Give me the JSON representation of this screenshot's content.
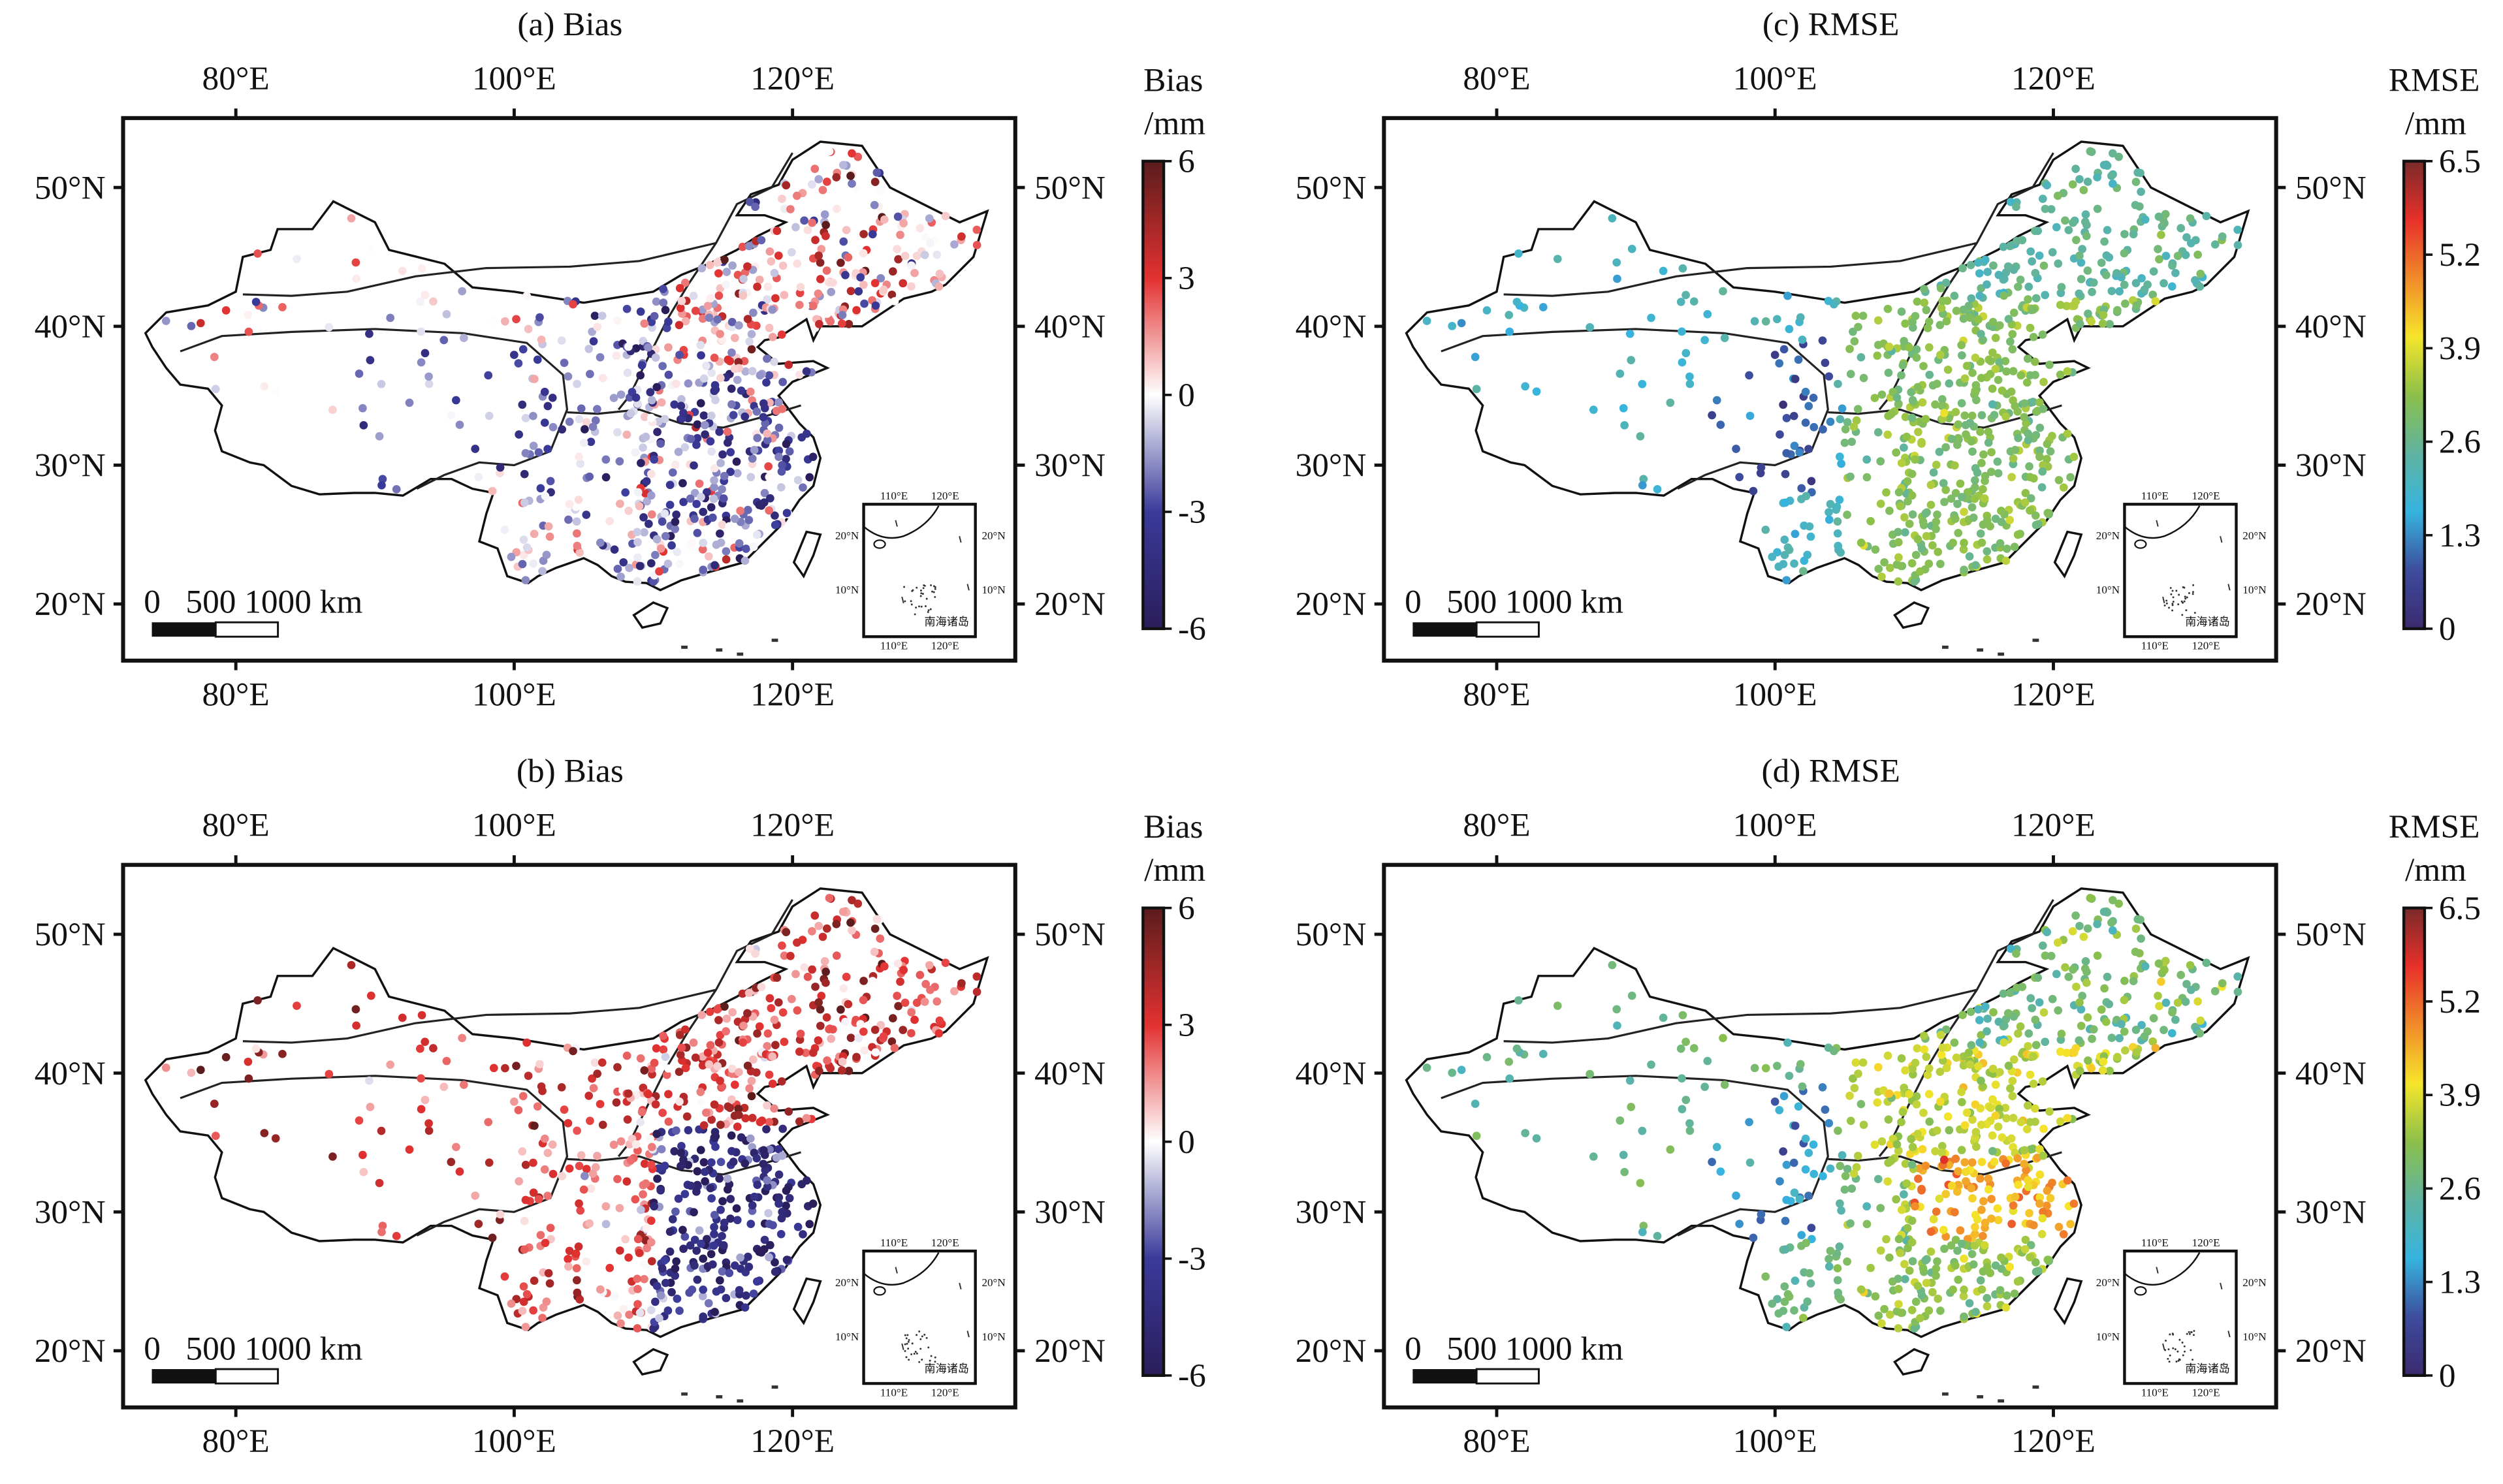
{
  "panels": [
    {
      "id": "a",
      "title": "(a) Bias",
      "metric": "bias"
    },
    {
      "id": "c",
      "title": "(c) RMSE",
      "metric": "rmse"
    },
    {
      "id": "b",
      "title": "(b) Bias",
      "metric": "bias"
    },
    {
      "id": "d",
      "title": "(d) RMSE",
      "metric": "rmse"
    }
  ],
  "axes": {
    "lon_ticks": [
      "80°E",
      "100°E",
      "120°E"
    ],
    "lat_ticks": [
      "50°N",
      "40°N",
      "30°N",
      "20°N"
    ]
  },
  "colorbars": {
    "bias": {
      "title": "Bias",
      "unit": "/mm",
      "ticks": [
        "6",
        "3",
        "0",
        "-3",
        "-6"
      ],
      "range": [
        -6,
        6
      ],
      "colors": [
        "#2a1d5a",
        "#3a3a9a",
        "#ffffff",
        "#e33131",
        "#5a1c1c"
      ]
    },
    "rmse": {
      "title": "RMSE",
      "unit": "/mm",
      "ticks": [
        "6.5",
        "5.2",
        "3.9",
        "2.6",
        "1.3",
        "0"
      ],
      "range": [
        0,
        6.5
      ],
      "colors": [
        "#3b2a6e",
        "#3d4c9e",
        "#36b4e0",
        "#5fb3a0",
        "#8cc04a",
        "#f6e52a",
        "#f08a2a",
        "#e8302a",
        "#7a2a2a"
      ]
    }
  },
  "scale_bar": {
    "label": "0   500 1000 km"
  },
  "inset": {
    "lon_ticks": [
      "110°E",
      "120°E"
    ],
    "lat_ticks": [
      "20°N",
      "10°N"
    ],
    "label": "南海诸岛"
  },
  "chart_data": {
    "type": "scatter",
    "lon_ticks": [
      80,
      100,
      120
    ],
    "lat_ticks": [
      50,
      40,
      30,
      20
    ],
    "lon_range": [
      72,
      136
    ],
    "lat_range": [
      16,
      55
    ]
  }
}
